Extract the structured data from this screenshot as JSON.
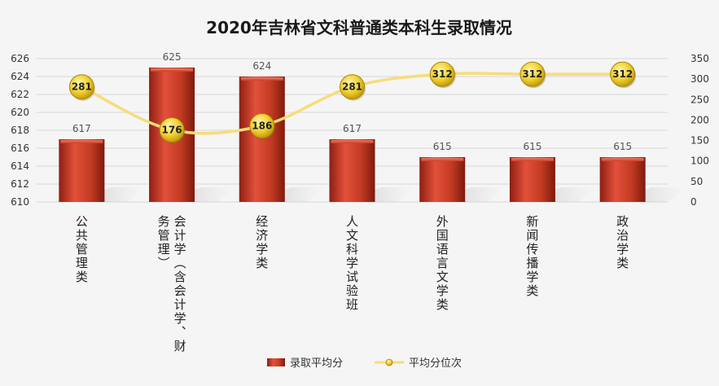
{
  "chart_data": {
    "type": "bar",
    "title": "2020年吉林省文科普通类本科生录取情况",
    "categories": [
      "公共管理类",
      "会计学（含会计学、财务管理）",
      "经济学类",
      "人文科学试验班",
      "外国语言文学类",
      "新闻传播学类",
      "政治学类"
    ],
    "series": [
      {
        "name": "录取平均分",
        "type": "bar",
        "axis": "left",
        "color": "#c0392b",
        "values": [
          617,
          625,
          624,
          617,
          615,
          615,
          615
        ]
      },
      {
        "name": "平均分位次",
        "type": "line",
        "axis": "right",
        "color": "#f5d76e",
        "values": [
          281,
          176,
          186,
          281,
          312,
          312,
          312
        ]
      }
    ],
    "y_left": {
      "min": 610,
      "max": 626,
      "ticks": [
        "610",
        "612",
        "614",
        "616",
        "618",
        "620",
        "622",
        "624",
        "626"
      ]
    },
    "y_right": {
      "min": 0,
      "max": 350,
      "ticks": [
        "0",
        "50",
        "100",
        "150",
        "200",
        "250",
        "300",
        "350"
      ]
    },
    "grid": true,
    "legend_position": "bottom"
  }
}
